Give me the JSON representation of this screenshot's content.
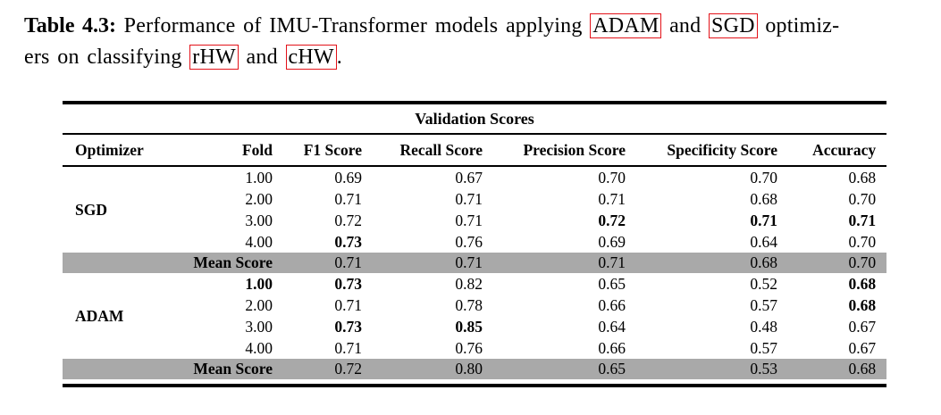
{
  "caption": {
    "label": "Table 4.3:",
    "lines": [
      [
        {
          "text": " Performance of IMU-Transformer models applying ",
          "boxed": false
        },
        {
          "text": "ADAM",
          "boxed": true
        },
        {
          "text": " and ",
          "boxed": false
        },
        {
          "text": "SGD",
          "boxed": true
        },
        {
          "text": " optimiz-",
          "boxed": false
        }
      ],
      [
        {
          "text": "ers on classifying ",
          "boxed": false
        },
        {
          "text": "rHW",
          "boxed": true
        },
        {
          "text": " and ",
          "boxed": false
        },
        {
          "text": "cHW",
          "boxed": true
        },
        {
          "text": ".",
          "boxed": false
        }
      ]
    ]
  },
  "table": {
    "span_header": "Validation Scores",
    "columns": [
      "Optimizer",
      "Fold",
      "F1 Score",
      "Recall Score",
      "Precision Score",
      "Specificity Score",
      "Accuracy"
    ],
    "groups": [
      {
        "optimizer": "SGD",
        "rows": [
          {
            "fold": "1.00",
            "fold_bold": false,
            "values": [
              "0.69",
              "0.67",
              "0.70",
              "0.70",
              "0.68"
            ],
            "bold": [
              false,
              false,
              false,
              false,
              false
            ]
          },
          {
            "fold": "2.00",
            "fold_bold": false,
            "values": [
              "0.71",
              "0.71",
              "0.71",
              "0.68",
              "0.70"
            ],
            "bold": [
              false,
              false,
              false,
              false,
              false
            ]
          },
          {
            "fold": "3.00",
            "fold_bold": false,
            "values": [
              "0.72",
              "0.71",
              "0.72",
              "0.71",
              "0.71"
            ],
            "bold": [
              false,
              false,
              true,
              true,
              true
            ]
          },
          {
            "fold": "4.00",
            "fold_bold": false,
            "values": [
              "0.73",
              "0.76",
              "0.69",
              "0.64",
              "0.70"
            ],
            "bold": [
              true,
              false,
              false,
              false,
              false
            ]
          }
        ],
        "mean": {
          "label": "Mean Score",
          "values": [
            "0.71",
            "0.71",
            "0.71",
            "0.68",
            "0.70"
          ]
        }
      },
      {
        "optimizer": "ADAM",
        "rows": [
          {
            "fold": "1.00",
            "fold_bold": true,
            "values": [
              "0.73",
              "0.82",
              "0.65",
              "0.52",
              "0.68"
            ],
            "bold": [
              true,
              false,
              false,
              false,
              true
            ]
          },
          {
            "fold": "2.00",
            "fold_bold": false,
            "values": [
              "0.71",
              "0.78",
              "0.66",
              "0.57",
              "0.68"
            ],
            "bold": [
              false,
              false,
              false,
              false,
              true
            ]
          },
          {
            "fold": "3.00",
            "fold_bold": false,
            "values": [
              "0.73",
              "0.85",
              "0.64",
              "0.48",
              "0.67"
            ],
            "bold": [
              true,
              true,
              false,
              false,
              false
            ]
          },
          {
            "fold": "4.00",
            "fold_bold": false,
            "values": [
              "0.71",
              "0.76",
              "0.66",
              "0.57",
              "0.67"
            ],
            "bold": [
              false,
              false,
              false,
              false,
              false
            ]
          }
        ],
        "mean": {
          "label": "Mean Score",
          "values": [
            "0.72",
            "0.80",
            "0.65",
            "0.53",
            "0.68"
          ]
        }
      }
    ]
  },
  "colors": {
    "mean_row_bg": "#a9a9a9",
    "acronym_border": "#e31219",
    "rule_color": "#000000"
  }
}
